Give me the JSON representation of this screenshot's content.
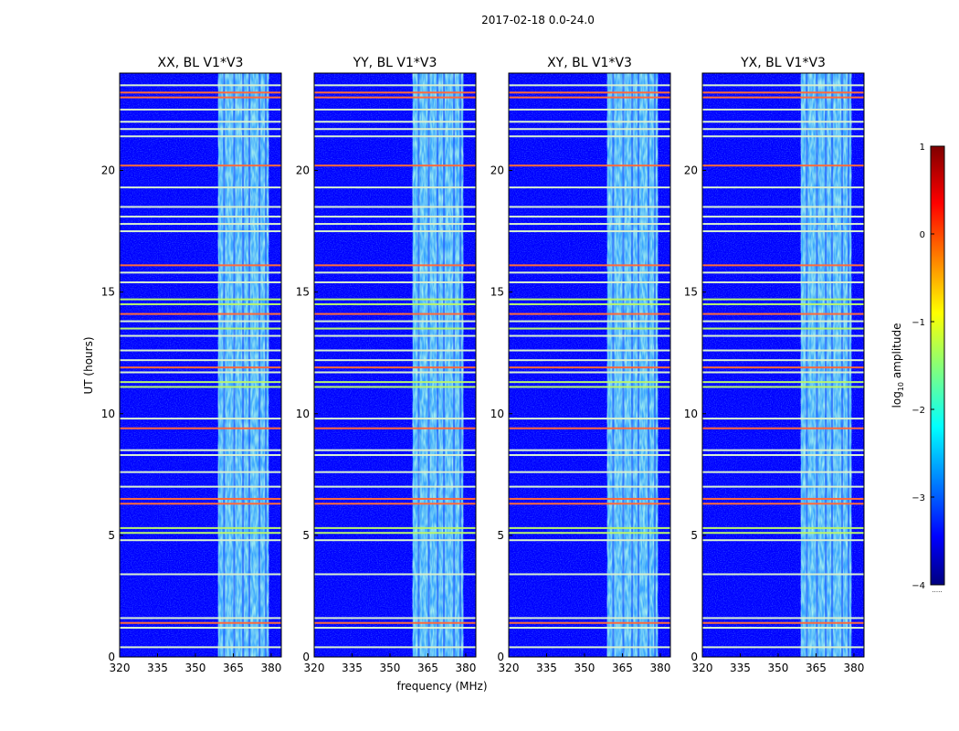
{
  "suptitle": "2017-02-18 0.0-24.0",
  "colors": {
    "background": "#0000ff",
    "rfi_strong": "#ff6a3a",
    "rfi_mid": "#b8f570",
    "rfi_weak": "#d8f0d0"
  },
  "chart_data": [
    {
      "type": "heatmap",
      "title": "XX, BL V1*V3",
      "xlabel": "",
      "ylabel": "UT (hours)",
      "xlim": [
        320,
        384
      ],
      "ylim": [
        0,
        24
      ],
      "xticks": [
        "320",
        "335",
        "350",
        "365",
        "380"
      ],
      "yticks": [
        "0",
        "5",
        "10",
        "15",
        "20"
      ]
    },
    {
      "type": "heatmap",
      "title": "YY, BL V1*V3",
      "xlabel": "frequency (MHz)",
      "ylabel": "",
      "xlim": [
        320,
        384
      ],
      "ylim": [
        0,
        24
      ],
      "xticks": [
        "320",
        "335",
        "350",
        "365",
        "380"
      ],
      "yticks": [
        "0",
        "5",
        "10",
        "15",
        "20"
      ]
    },
    {
      "type": "heatmap",
      "title": "XY, BL V1*V3",
      "xlabel": "",
      "ylabel": "",
      "xlim": [
        320,
        384
      ],
      "ylim": [
        0,
        24
      ],
      "xticks": [
        "320",
        "335",
        "350",
        "365",
        "380"
      ],
      "yticks": [
        "0",
        "5",
        "10",
        "15",
        "20"
      ]
    },
    {
      "type": "heatmap",
      "title": "YX, BL V1*V3",
      "xlabel": "",
      "ylabel": "",
      "xlim": [
        320,
        384
      ],
      "ylim": [
        0,
        24
      ],
      "xticks": [
        "320",
        "335",
        "350",
        "365",
        "380"
      ],
      "yticks": [
        "0",
        "5",
        "10",
        "15",
        "20"
      ]
    }
  ],
  "colorbar": {
    "label_prefix": "log",
    "label_sub": "10",
    "label_suffix": " amplitude",
    "range": [
      -4,
      1
    ],
    "ticks": [
      "1",
      "0",
      "−1",
      "−2",
      "−3",
      "−4"
    ],
    "ellipsis": "....."
  },
  "rfi_band_mhz": [
    359,
    379
  ],
  "rfi_lines_ut": [
    {
      "t": 23.5,
      "c": "rfi_weak"
    },
    {
      "t": 23.2,
      "c": "rfi_strong"
    },
    {
      "t": 23.0,
      "c": "rfi_strong"
    },
    {
      "t": 22.5,
      "c": "rfi_weak"
    },
    {
      "t": 22.0,
      "c": "rfi_weak"
    },
    {
      "t": 21.7,
      "c": "rfi_weak"
    },
    {
      "t": 21.4,
      "c": "rfi_weak"
    },
    {
      "t": 20.2,
      "c": "rfi_strong"
    },
    {
      "t": 19.3,
      "c": "rfi_weak"
    },
    {
      "t": 18.5,
      "c": "rfi_weak"
    },
    {
      "t": 18.1,
      "c": "rfi_weak"
    },
    {
      "t": 17.8,
      "c": "rfi_weak"
    },
    {
      "t": 17.5,
      "c": "rfi_weak"
    },
    {
      "t": 16.1,
      "c": "rfi_strong"
    },
    {
      "t": 15.8,
      "c": "rfi_weak"
    },
    {
      "t": 15.4,
      "c": "rfi_weak"
    },
    {
      "t": 14.7,
      "c": "rfi_mid"
    },
    {
      "t": 14.5,
      "c": "rfi_mid"
    },
    {
      "t": 14.1,
      "c": "rfi_strong"
    },
    {
      "t": 13.8,
      "c": "rfi_weak"
    },
    {
      "t": 13.5,
      "c": "rfi_mid"
    },
    {
      "t": 13.2,
      "c": "rfi_weak"
    },
    {
      "t": 12.6,
      "c": "rfi_weak"
    },
    {
      "t": 12.2,
      "c": "rfi_weak"
    },
    {
      "t": 11.9,
      "c": "rfi_strong"
    },
    {
      "t": 11.7,
      "c": "rfi_weak"
    },
    {
      "t": 11.3,
      "c": "rfi_mid"
    },
    {
      "t": 11.1,
      "c": "rfi_mid"
    },
    {
      "t": 9.8,
      "c": "rfi_weak"
    },
    {
      "t": 9.4,
      "c": "rfi_strong"
    },
    {
      "t": 8.5,
      "c": "rfi_weak"
    },
    {
      "t": 8.3,
      "c": "rfi_weak"
    },
    {
      "t": 7.6,
      "c": "rfi_weak"
    },
    {
      "t": 7.0,
      "c": "rfi_weak"
    },
    {
      "t": 6.5,
      "c": "rfi_strong"
    },
    {
      "t": 6.3,
      "c": "rfi_strong"
    },
    {
      "t": 5.3,
      "c": "rfi_mid"
    },
    {
      "t": 5.1,
      "c": "rfi_mid"
    },
    {
      "t": 4.8,
      "c": "rfi_weak"
    },
    {
      "t": 3.4,
      "c": "rfi_weak"
    },
    {
      "t": 1.6,
      "c": "rfi_weak"
    },
    {
      "t": 1.4,
      "c": "rfi_strong"
    },
    {
      "t": 1.2,
      "c": "rfi_weak"
    },
    {
      "t": 0.4,
      "c": "rfi_weak"
    }
  ]
}
